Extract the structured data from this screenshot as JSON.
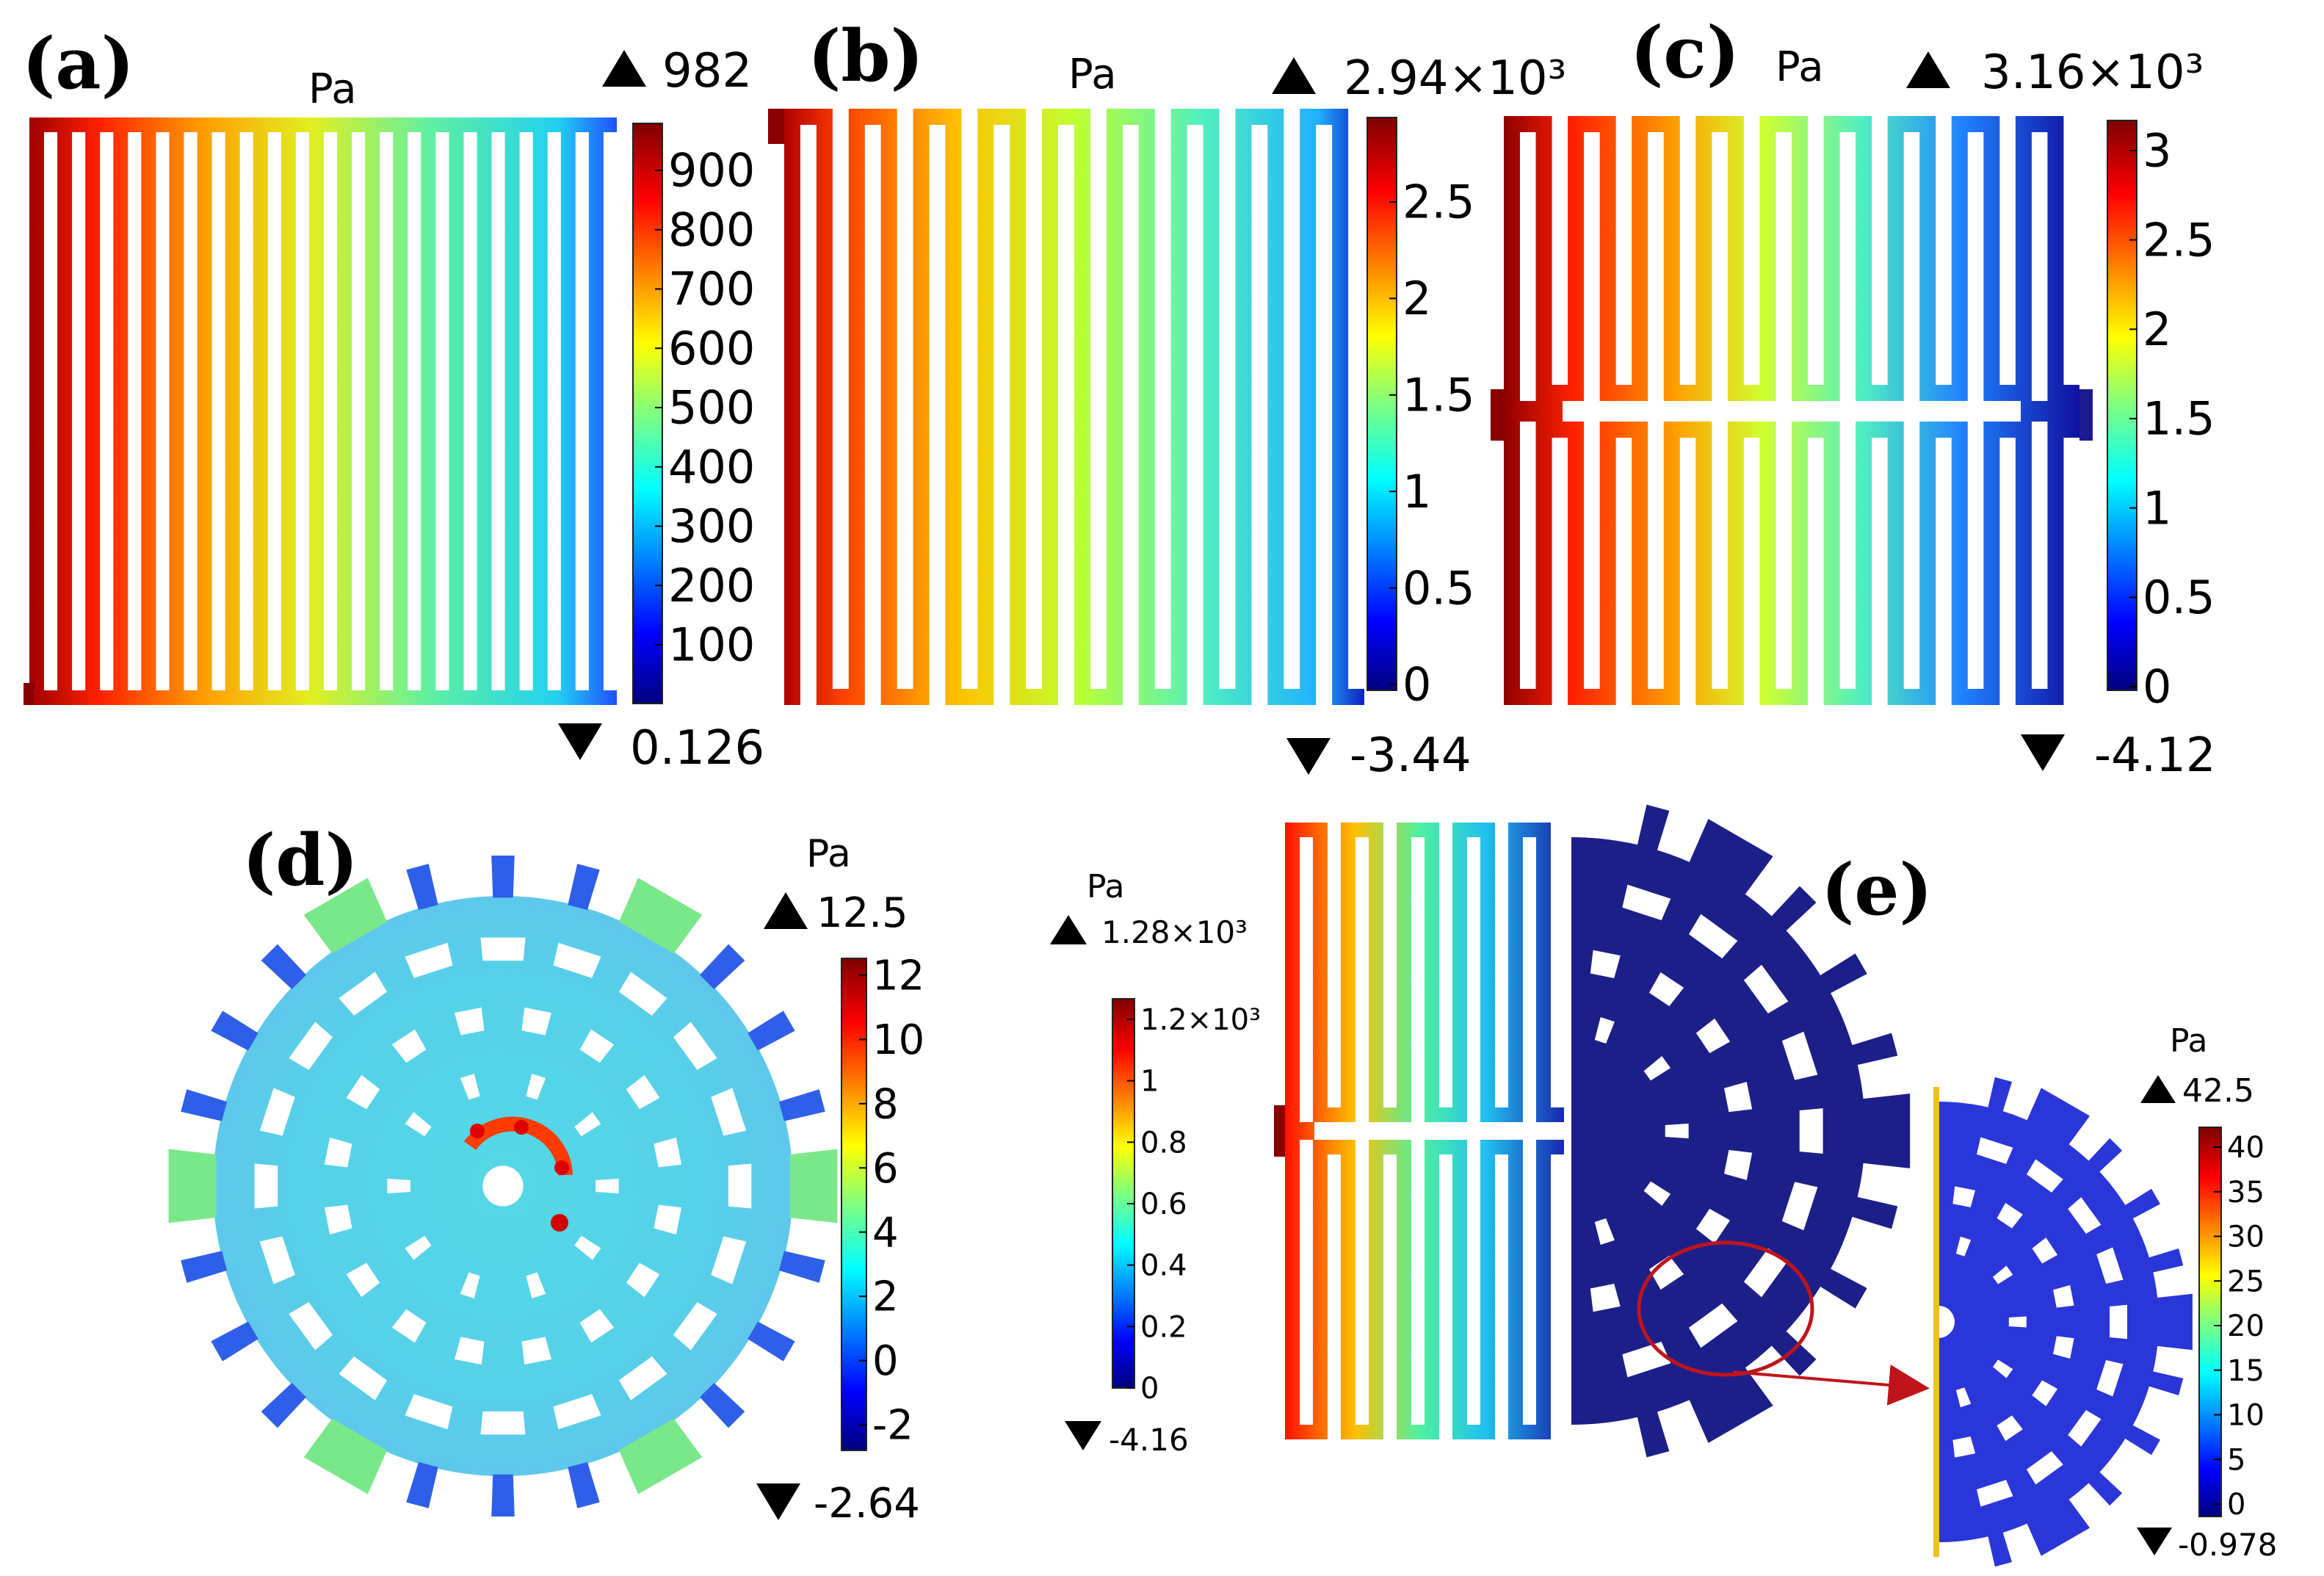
{
  "panels": {
    "a": {
      "label": "(a)",
      "unit": "Pa",
      "max_label": "982",
      "min_label": "0.126",
      "ticks": [
        "900",
        "800",
        "700",
        "600",
        "500",
        "400",
        "300",
        "200",
        "100"
      ]
    },
    "b": {
      "label": "(b)",
      "unit": "Pa",
      "max_label": "2.94×10³",
      "min_label": "-3.44",
      "ticks": [
        "2.5",
        "2",
        "1.5",
        "1",
        "0.5",
        "0"
      ]
    },
    "c": {
      "label": "(c)",
      "unit": "Pa",
      "max_label": "3.16×10³",
      "min_label": "-4.12",
      "ticks": [
        "3",
        "2.5",
        "2",
        "1.5",
        "1",
        "0.5",
        "0"
      ]
    },
    "d": {
      "label": "(d)",
      "unit": "Pa",
      "max_label": "12.5",
      "min_label": "-2.64",
      "ticks": [
        "12",
        "10",
        "8",
        "6",
        "4",
        "2",
        "0",
        "-2"
      ]
    },
    "e": {
      "label": "(e)",
      "unit": "Pa",
      "max_label": "1.28×10³",
      "min_label": "-4.16",
      "ticks": [
        "1.2×10³",
        "1",
        "0.8",
        "0.6",
        "0.4",
        "0.2",
        "0"
      ]
    },
    "e_zoom": {
      "unit": "Pa",
      "max_label": "42.5",
      "min_label": "-0.978",
      "ticks": [
        "40",
        "35",
        "30",
        "25",
        "20",
        "15",
        "10",
        "5",
        "0"
      ]
    }
  },
  "colors": {
    "jet": [
      "#00007f",
      "#0000ff",
      "#007fff",
      "#00ffff",
      "#7fff7f",
      "#ffff00",
      "#ff7f00",
      "#ff0000",
      "#7f0000"
    ],
    "annotation": "#c0141c",
    "dark_blue": "#1c1f88",
    "light_blue": "#4fc4e2"
  }
}
